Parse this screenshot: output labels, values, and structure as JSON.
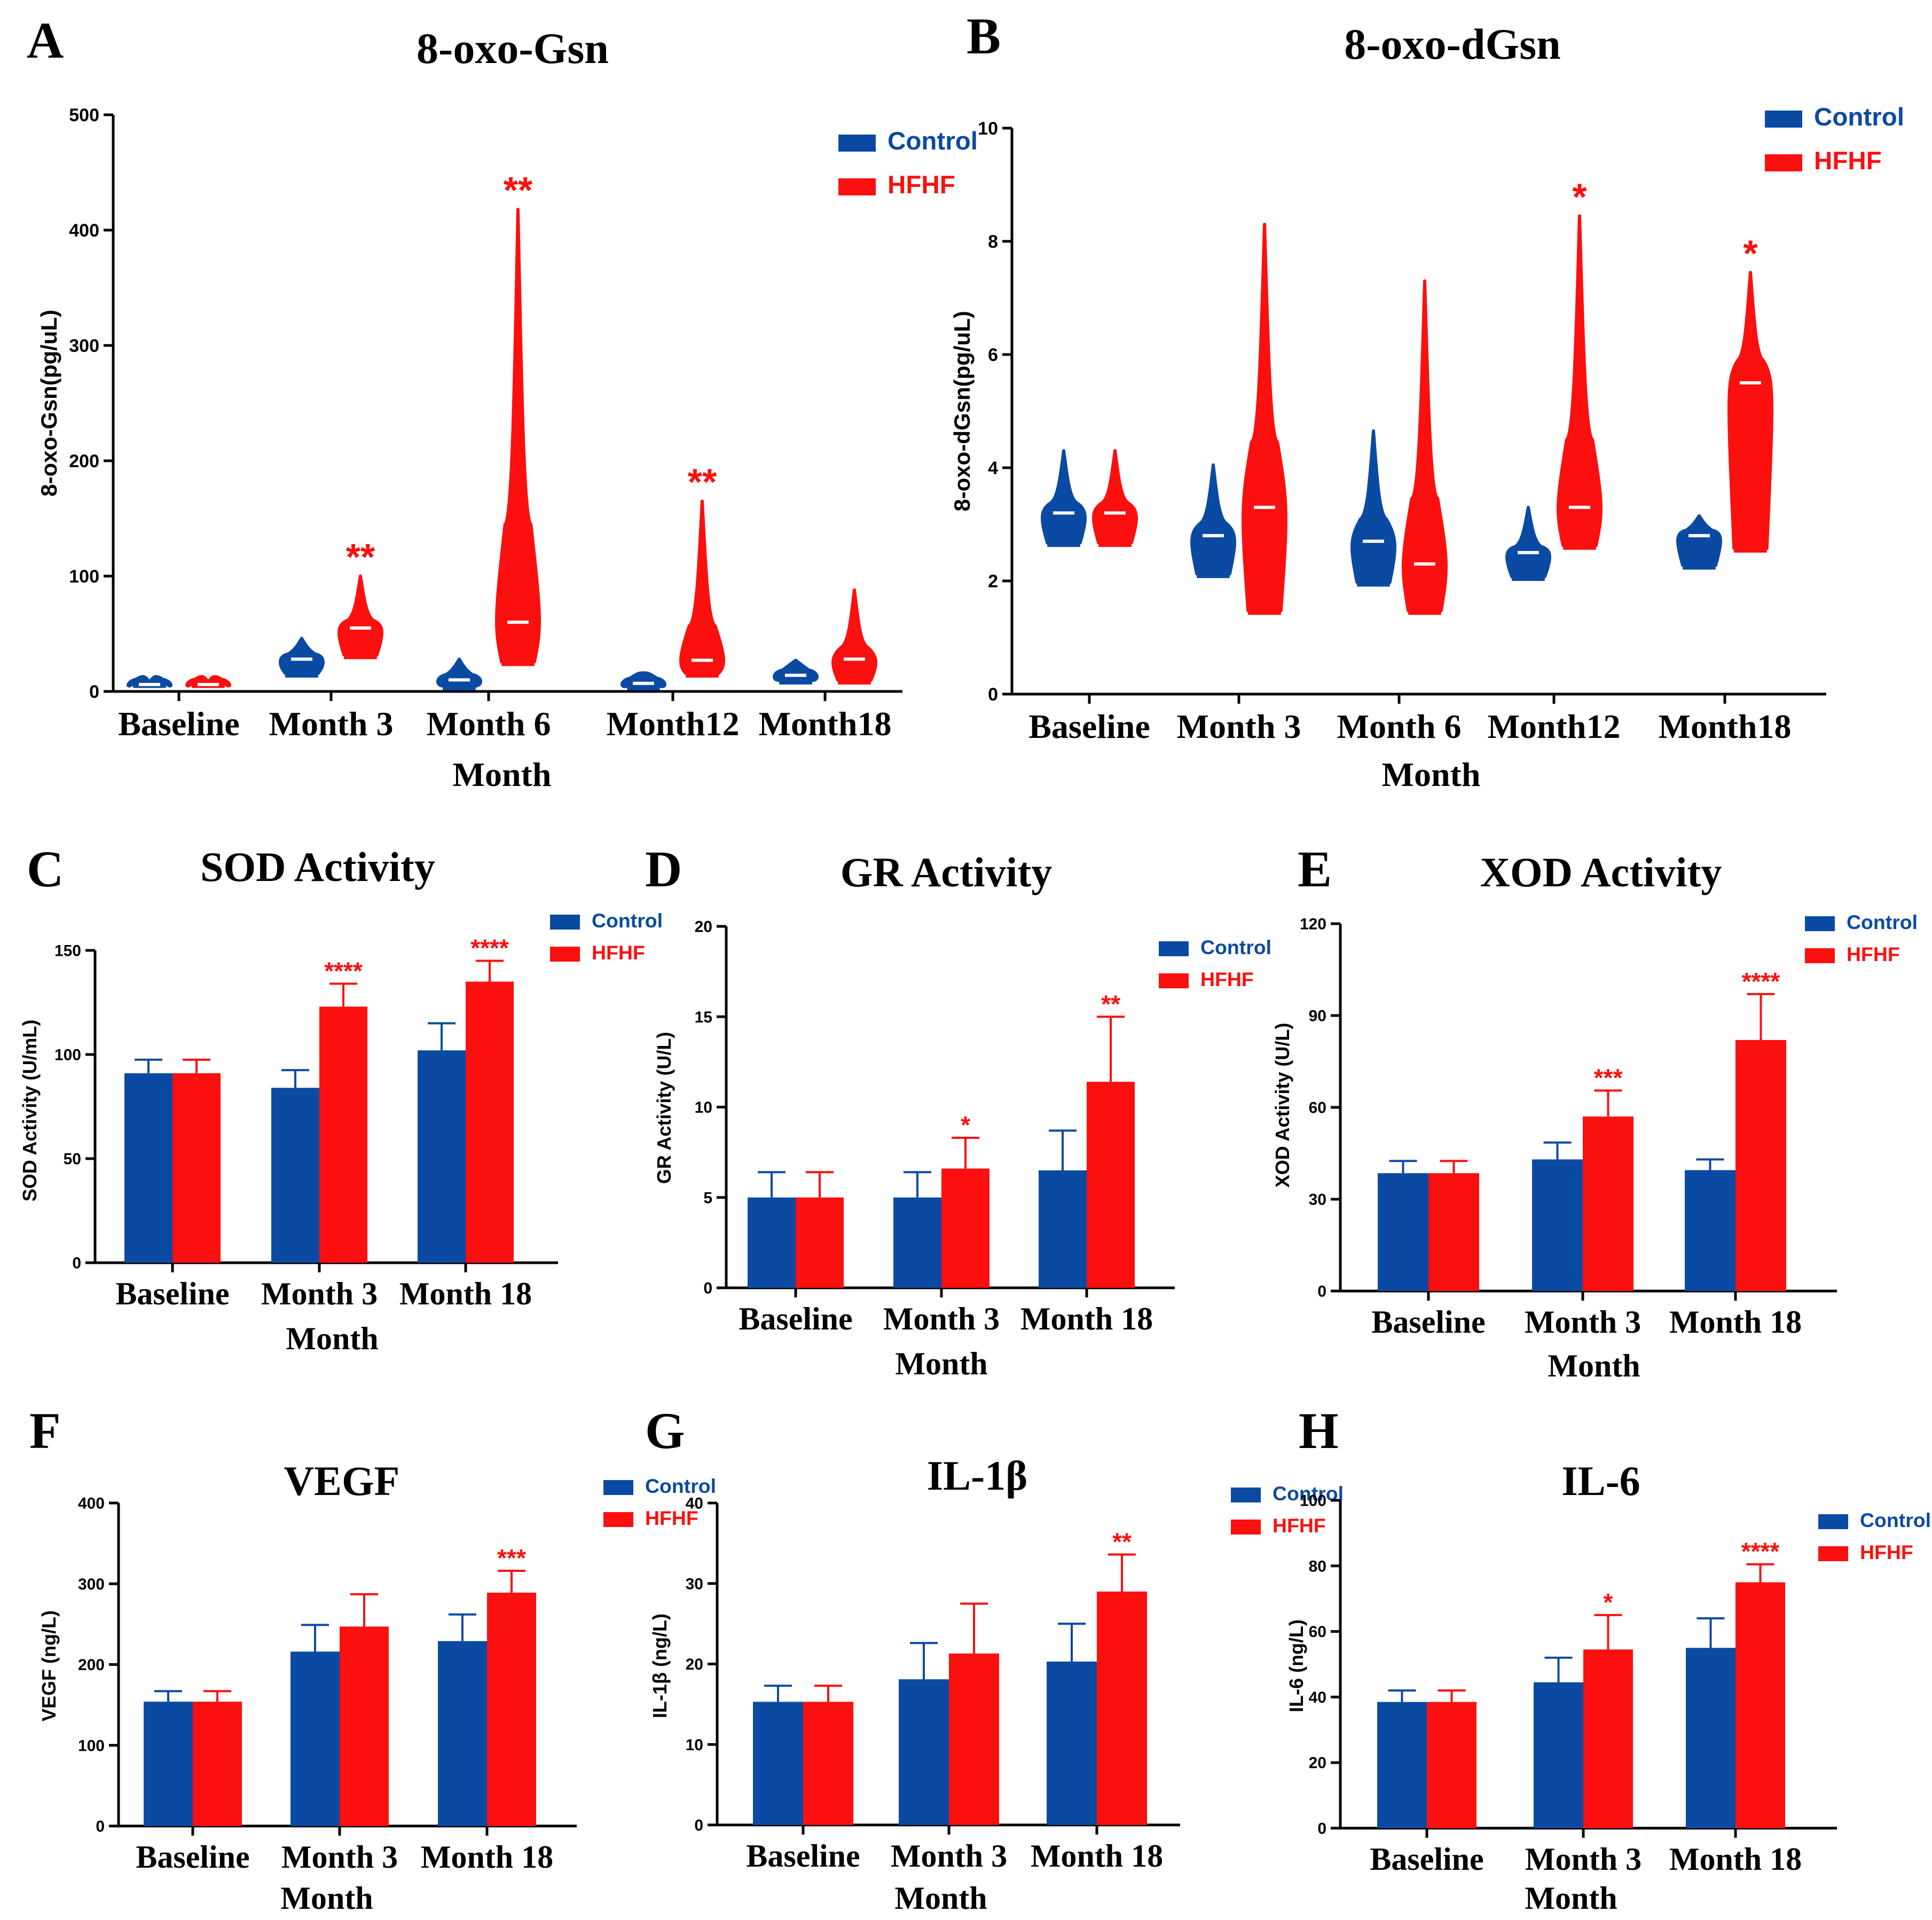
{
  "colors": {
    "control": "#0b4aa2",
    "hfhf": "#fb0f0f",
    "axis": "#000000",
    "text": "#000000"
  },
  "legend": {
    "control": "Control",
    "hfhf": "HFHF"
  },
  "chart_data": [
    {
      "id": "A",
      "panel_label": "A",
      "type": "violin",
      "title": "8-oxo-Gsn",
      "xlabel": "Month",
      "ylabel": "8-oxo-Gsn(pg/uL)",
      "ylim": [
        0,
        500
      ],
      "yticks": [
        "0",
        "100",
        "200",
        "300",
        "400",
        "500"
      ],
      "categories": [
        "Baseline",
        "Month 3",
        "Month 6",
        "Month12",
        "Month18"
      ],
      "legend_position": "top-right",
      "series": [
        {
          "name": "Control",
          "min": [
            3,
            12,
            1,
            1,
            6
          ],
          "median": [
            6,
            28,
            10,
            7,
            14
          ],
          "max": [
            8,
            46,
            28,
            16,
            27
          ]
        },
        {
          "name": "HFHF",
          "min": [
            3,
            28,
            22,
            12,
            6
          ],
          "median": [
            6,
            55,
            60,
            27,
            28
          ],
          "max": [
            8,
            100,
            418,
            165,
            88
          ]
        }
      ],
      "significance": [
        "",
        "**",
        "**",
        "**",
        ""
      ]
    },
    {
      "id": "B",
      "panel_label": "B",
      "type": "violin",
      "title": "8-oxo-dGsn",
      "xlabel": "Month",
      "ylabel": "8-oxo-dGsn(pg/uL)",
      "ylim": [
        0,
        10
      ],
      "yticks": [
        "0",
        "2",
        "4",
        "6",
        "8",
        "10"
      ],
      "categories": [
        "Baseline",
        "Month 3",
        "Month 6",
        "Month12",
        "Month18"
      ],
      "legend_position": "top-right",
      "series": [
        {
          "name": "Control",
          "min": [
            2.6,
            2.05,
            1.9,
            2.0,
            2.2
          ],
          "median": [
            3.2,
            2.8,
            2.7,
            2.5,
            2.8
          ],
          "max": [
            4.3,
            4.05,
            4.65,
            3.3,
            3.15
          ]
        },
        {
          "name": "HFHF",
          "min": [
            2.6,
            1.4,
            1.4,
            2.55,
            2.5
          ],
          "median": [
            3.2,
            3.3,
            2.3,
            3.3,
            5.5
          ],
          "max": [
            4.3,
            8.3,
            7.3,
            8.45,
            7.45
          ]
        }
      ],
      "significance": [
        "",
        "",
        "",
        "*",
        "*"
      ]
    },
    {
      "id": "C",
      "panel_label": "C",
      "type": "bar",
      "title": "SOD Activity",
      "xlabel": "Month",
      "ylabel": "SOD Activity (U/mL)",
      "ylim": [
        0,
        150
      ],
      "yticks": [
        "0",
        "50",
        "100",
        "150"
      ],
      "categories": [
        "Baseline",
        "Month 3",
        "Month 18"
      ],
      "legend_position": "top-right",
      "series": [
        {
          "name": "Control",
          "values": [
            91,
            84,
            102
          ],
          "errors": [
            6.5,
            8.5,
            13
          ]
        },
        {
          "name": "HFHF",
          "values": [
            91,
            123,
            135
          ],
          "errors": [
            6.5,
            11,
            10
          ]
        }
      ],
      "significance": [
        "",
        "****",
        "****"
      ]
    },
    {
      "id": "D",
      "panel_label": "D",
      "type": "bar",
      "title": "GR Activity",
      "xlabel": "Month",
      "ylabel": "GR Activity (U/L)",
      "ylim": [
        0,
        20
      ],
      "yticks": [
        "0",
        "5",
        "10",
        "15",
        "20"
      ],
      "categories": [
        "Baseline",
        "Month 3",
        "Month 18"
      ],
      "legend_position": "top-right",
      "series": [
        {
          "name": "Control",
          "values": [
            5,
            5,
            6.5
          ],
          "errors": [
            1.4,
            1.4,
            2.2
          ]
        },
        {
          "name": "HFHF",
          "values": [
            5,
            6.6,
            11.4
          ],
          "errors": [
            1.4,
            1.7,
            3.6
          ]
        }
      ],
      "significance": [
        "",
        "*",
        "**"
      ]
    },
    {
      "id": "E",
      "panel_label": "E",
      "type": "bar",
      "title": "XOD Activity",
      "xlabel": "Month",
      "ylabel": "XOD Activity (U/L)",
      "ylim": [
        0,
        120
      ],
      "yticks": [
        "0",
        "30",
        "60",
        "90",
        "120"
      ],
      "categories": [
        "Baseline",
        "Month 3",
        "Month 18"
      ],
      "legend_position": "top-right",
      "series": [
        {
          "name": "Control",
          "values": [
            38.5,
            43,
            39.5
          ],
          "errors": [
            4,
            5.5,
            3.5
          ]
        },
        {
          "name": "HFHF",
          "values": [
            38.5,
            57,
            82
          ],
          "errors": [
            4,
            8.5,
            15
          ]
        }
      ],
      "significance": [
        "",
        "***",
        "****"
      ]
    },
    {
      "id": "F",
      "panel_label": "F",
      "type": "bar",
      "title": "VEGF",
      "xlabel": "Month",
      "ylabel": "VEGF (ng/L)",
      "ylim": [
        0,
        400
      ],
      "yticks": [
        "0",
        "100",
        "200",
        "300",
        "400"
      ],
      "categories": [
        "Baseline",
        "Month 3",
        "Month 18"
      ],
      "legend_position": "top-right",
      "series": [
        {
          "name": "Control",
          "values": [
            154,
            216,
            229
          ],
          "errors": [
            13,
            33,
            33
          ]
        },
        {
          "name": "HFHF",
          "values": [
            154,
            247,
            289
          ],
          "errors": [
            13,
            40,
            27
          ]
        }
      ],
      "significance": [
        "",
        "",
        "***"
      ]
    },
    {
      "id": "G",
      "panel_label": "G",
      "type": "bar",
      "title": "IL-1β",
      "xlabel": "Month",
      "ylabel": "IL-1β (ng/L)",
      "ylim": [
        0,
        40
      ],
      "yticks": [
        "0",
        "10",
        "20",
        "30",
        "40"
      ],
      "categories": [
        "Baseline",
        "Month 3",
        "Month 18"
      ],
      "legend_position": "top-right",
      "series": [
        {
          "name": "Control",
          "values": [
            15.3,
            18.1,
            20.3
          ],
          "errors": [
            2,
            4.5,
            4.7
          ]
        },
        {
          "name": "HFHF",
          "values": [
            15.3,
            21.3,
            29
          ],
          "errors": [
            2,
            6.2,
            4.6
          ]
        }
      ],
      "significance": [
        "",
        "",
        "**"
      ]
    },
    {
      "id": "H",
      "panel_label": "H",
      "type": "bar",
      "title": "IL-6",
      "xlabel": "Month",
      "ylabel": "IL-6 (ng/L)",
      "ylim": [
        0,
        100
      ],
      "yticks": [
        "0",
        "20",
        "40",
        "60",
        "80",
        "100"
      ],
      "categories": [
        "Baseline",
        "Month 3",
        "Month 18"
      ],
      "legend_position": "top-right",
      "series": [
        {
          "name": "Control",
          "values": [
            38.5,
            44.5,
            55
          ],
          "errors": [
            3.5,
            7.5,
            9
          ]
        },
        {
          "name": "HFHF",
          "values": [
            38.5,
            54.5,
            75
          ],
          "errors": [
            3.5,
            10.5,
            5.5
          ]
        }
      ],
      "significance": [
        "",
        "*",
        "****"
      ]
    }
  ]
}
